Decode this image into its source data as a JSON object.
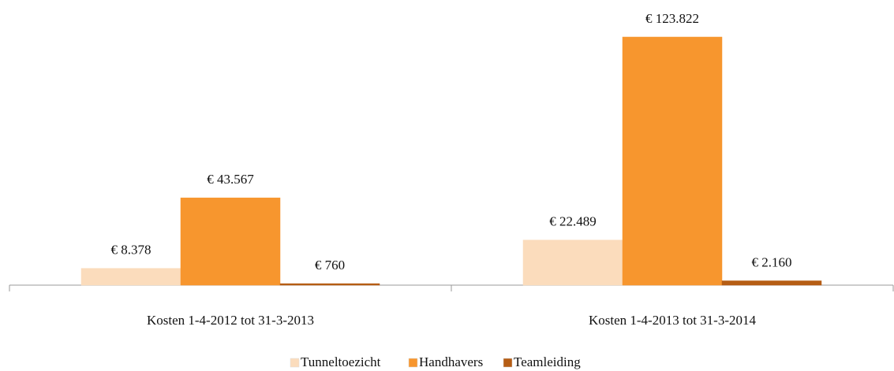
{
  "chart_data": {
    "type": "bar",
    "categories": [
      "Kosten 1-4-2012 tot 31-3-2013",
      "Kosten 1-4-2013 tot 31-3-2014"
    ],
    "series": [
      {
        "name": "Tunneltoezicht",
        "color": "#fbdcbc",
        "values": [
          8378,
          22489
        ],
        "value_labels": [
          "€ 8.378",
          "€ 22.489"
        ]
      },
      {
        "name": "Handhavers",
        "color": "#f7962e",
        "values": [
          43567,
          123822
        ],
        "value_labels": [
          "€ 43.567",
          "€ 123.822"
        ]
      },
      {
        "name": "Teamleiding",
        "color": "#b55d14",
        "values": [
          760,
          2160
        ],
        "value_labels": [
          "€ 760",
          "€ 2.160"
        ]
      }
    ],
    "legend": "bottom"
  }
}
